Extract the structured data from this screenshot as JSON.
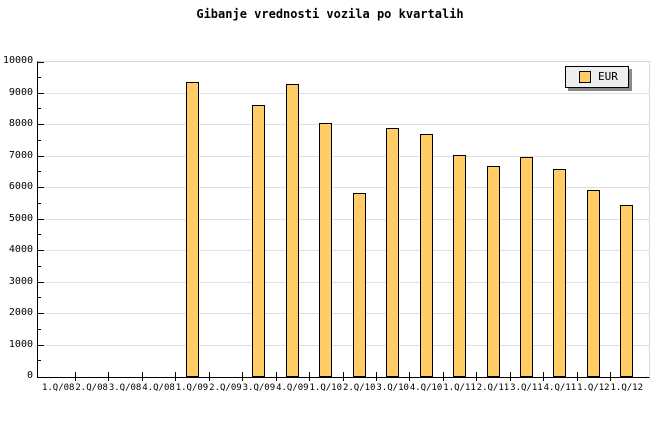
{
  "title": "Gibanje vrednosti vozila po kvartalih",
  "legend": {
    "label": "EUR"
  },
  "colors": {
    "background": "#ffffff",
    "bar_fill": "#ffcc66",
    "bar_border": "#000000",
    "grid": "#e0e0e0",
    "frame": "#d8d8d8",
    "axis": "#000000",
    "legend_bg": "#eeeeee",
    "legend_shadow": "#888888"
  },
  "chart_data": {
    "type": "bar",
    "title": "Gibanje vrednosti vozila po kvartalih",
    "categories": [
      "1.Q/08",
      "2.Q/08",
      "3.Q/08",
      "4.Q/08",
      "1.Q/09",
      "2.Q/09",
      "3.Q/09",
      "4.Q/09",
      "1.Q/10",
      "2.Q/10",
      "3.Q/10",
      "4.Q/10",
      "1.Q/11",
      "2.Q/11",
      "3.Q/11",
      "4.Q/11",
      "1.Q/12",
      "1.Q/12"
    ],
    "series": [
      {
        "name": "EUR",
        "values": [
          null,
          null,
          null,
          null,
          9350,
          null,
          8650,
          9300,
          8050,
          5850,
          7900,
          7700,
          7050,
          6700,
          7000,
          6600,
          5950,
          5450
        ]
      }
    ],
    "xlabel": "",
    "ylabel": "",
    "ylim": [
      0,
      10000
    ],
    "ytick_step": 1000,
    "ytick_minor_step": 500,
    "yticks": [
      "0",
      "1000",
      "2000",
      "3000",
      "4000",
      "5000",
      "6000",
      "7000",
      "8000",
      "9000",
      "10000"
    ],
    "grid": "horizontal",
    "legend_position": "top-right"
  }
}
